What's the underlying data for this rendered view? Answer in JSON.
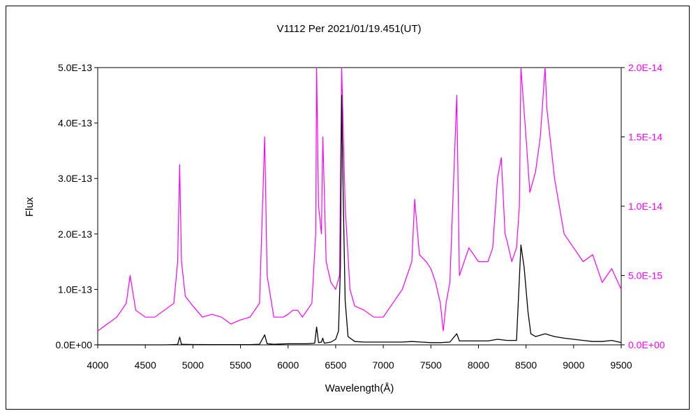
{
  "chart_data": {
    "type": "line",
    "title": "V1112 Per   2021/01/19.451(UT)",
    "xlabel": "Wavelength(Å)",
    "ylabel": "Flux",
    "xlim": [
      4000,
      9500
    ],
    "xticks": [
      4000,
      4500,
      5000,
      5500,
      6000,
      6500,
      7000,
      7500,
      8000,
      8500,
      9000,
      9500
    ],
    "ylim_left": [
      0,
      5e-13
    ],
    "yticks_left": [
      "0.0E+00",
      "1.0E-13",
      "2.0E-13",
      "3.0E-13",
      "4.0E-13",
      "5.0E-13"
    ],
    "ylim_right": [
      0,
      2e-14
    ],
    "yticks_right": [
      "0.0E+00",
      "5.0E-15",
      "1.0E-14",
      "1.5E-14",
      "2.0E-14"
    ],
    "grid": false,
    "series": [
      {
        "axis": "left",
        "color": "#000000",
        "x": [
          4000,
          4100,
          4200,
          4300,
          4400,
          4500,
          4600,
          4700,
          4800,
          4840,
          4861,
          4880,
          4950,
          5000,
          5200,
          5400,
          5600,
          5700,
          5754,
          5780,
          5850,
          6000,
          6200,
          6280,
          6300,
          6320,
          6350,
          6364,
          6380,
          6450,
          6500,
          6530,
          6550,
          6563,
          6580,
          6600,
          6630,
          6700,
          6800,
          7000,
          7200,
          7300,
          7400,
          7500,
          7600,
          7700,
          7772,
          7800,
          7900,
          8000,
          8100,
          8200,
          8300,
          8400,
          8446,
          8480,
          8520,
          8550,
          8600,
          8700,
          8800,
          8900,
          9000,
          9100,
          9200,
          9300,
          9400,
          9500
        ],
        "y": [
          0.0,
          0.0,
          0.0,
          0.0,
          0.0,
          0.0,
          0.0,
          0.0,
          5e-16,
          8e-16,
          1.4e-14,
          1e-15,
          7e-16,
          6e-16,
          5e-16,
          4e-16,
          5e-16,
          1e-15,
          1.8e-14,
          2e-15,
          1e-15,
          2e-15,
          2e-15,
          3e-15,
          3.2e-14,
          4e-15,
          5e-15,
          1.2e-14,
          3e-15,
          5e-15,
          1e-14,
          2.5e-14,
          1.4e-13,
          4.5e-13,
          2.6e-13,
          8e-14,
          1.5e-14,
          6e-15,
          5e-15,
          5e-15,
          5e-15,
          6e-15,
          5e-15,
          4e-15,
          4e-15,
          5e-15,
          2e-14,
          7e-15,
          7e-15,
          7e-15,
          7e-15,
          1e-14,
          8e-15,
          8e-15,
          1.8e-13,
          1.4e-13,
          6e-14,
          2e-14,
          1.5e-14,
          2e-14,
          1.5e-14,
          1.2e-14,
          1e-14,
          8e-15,
          6e-15,
          6e-15,
          8e-15,
          4e-15
        ]
      },
      {
        "axis": "right",
        "color": "#ff00ff",
        "x": [
          4000,
          4100,
          4200,
          4300,
          4340,
          4400,
          4500,
          4600,
          4700,
          4800,
          4840,
          4861,
          4880,
          4920,
          5000,
          5100,
          5200,
          5300,
          5400,
          5500,
          5600,
          5700,
          5754,
          5780,
          5850,
          5950,
          6000,
          6050,
          6100,
          6150,
          6200,
          6250,
          6290,
          6300,
          6320,
          6350,
          6365,
          6400,
          6450,
          6500,
          6540,
          6563,
          6600,
          6650,
          6700,
          6800,
          6900,
          7000,
          7100,
          7200,
          7250,
          7300,
          7330,
          7380,
          7450,
          7500,
          7550,
          7600,
          7630,
          7660,
          7700,
          7772,
          7800,
          7850,
          7900,
          8000,
          8100,
          8150,
          8200,
          8240,
          8280,
          8300,
          8350,
          8400,
          8430,
          8446,
          8500,
          8540,
          8600,
          8650,
          8700,
          8720,
          8800,
          8900,
          9000,
          9100,
          9200,
          9300,
          9400,
          9500
        ],
        "y": [
          1e-15,
          1.5e-15,
          2e-15,
          3e-15,
          5e-15,
          2.5e-15,
          2e-15,
          2e-15,
          2.5e-15,
          3e-15,
          6e-15,
          1.3e-14,
          6e-15,
          3.5e-15,
          2.8e-15,
          2e-15,
          2.2e-15,
          2e-15,
          1.5e-15,
          1.8e-15,
          2e-15,
          3e-15,
          1.5e-14,
          5e-15,
          2e-15,
          2e-15,
          2.2e-15,
          2.5e-15,
          2.5e-15,
          2e-15,
          2.5e-15,
          3e-15,
          8e-15,
          2e-14,
          1e-14,
          8e-15,
          1.5e-14,
          6e-15,
          4.5e-15,
          4e-15,
          5e-15,
          2e-14,
          1e-14,
          4e-15,
          2.8e-15,
          2.5e-15,
          2e-15,
          2e-15,
          3e-15,
          4e-15,
          5e-15,
          6e-15,
          1.05e-14,
          6.5e-15,
          6e-15,
          5.5e-15,
          4.5e-15,
          3e-15,
          1e-15,
          3e-15,
          4.5e-15,
          1.8e-14,
          5e-15,
          6e-15,
          7e-15,
          6e-15,
          6e-15,
          7e-15,
          1.2e-14,
          1.35e-14,
          8e-15,
          7.5e-15,
          6e-15,
          7e-15,
          1e-14,
          2e-14,
          1.5e-14,
          1.1e-14,
          1.25e-14,
          1.5e-14,
          2e-14,
          1.7e-14,
          1.2e-14,
          8e-15,
          7e-15,
          6e-15,
          6.5e-15,
          4.5e-15,
          5.5e-15,
          4e-15
        ]
      }
    ]
  }
}
